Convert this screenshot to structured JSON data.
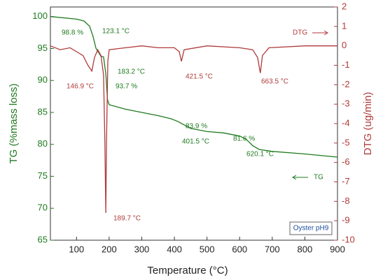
{
  "chart_data": {
    "type": "line",
    "xlabel": "Temperature (°C)",
    "ylabel": "TG (%mass loss)",
    "y2label": "DTG (ug/min)",
    "xlim": [
      20,
      900
    ],
    "xticks": [
      100,
      200,
      300,
      400,
      500,
      600,
      700,
      800,
      900
    ],
    "ylim": [
      65,
      101.5
    ],
    "yticks": [
      65,
      70,
      75,
      80,
      85,
      90,
      95,
      100
    ],
    "y2lim": [
      -10,
      2
    ],
    "y2ticks": [
      -10,
      -9,
      -8,
      -7,
      -6,
      -5,
      -4,
      -3,
      -2,
      -1,
      0,
      1,
      2
    ],
    "series": [
      {
        "name": "TG",
        "color": "#1f7a1f",
        "x": [
          20,
          100,
          123,
          140,
          150,
          160,
          175,
          183,
          190,
          195,
          200,
          250,
          300,
          350,
          390,
          410,
          450,
          500,
          550,
          600,
          620,
          640,
          660,
          700,
          800,
          900
        ],
        "values": [
          100,
          99.6,
          99.3,
          98.5,
          97,
          95,
          93.8,
          93.7,
          91,
          87,
          86.2,
          85.5,
          85,
          84.5,
          84,
          83.6,
          82.5,
          82,
          81.8,
          81.3,
          80.8,
          79.8,
          79.2,
          78.9,
          78.5,
          78
        ]
      },
      {
        "name": "DTG",
        "color": "#b03a3a",
        "axis": "y2",
        "x": [
          20,
          50,
          80,
          100,
          120,
          135,
          147,
          155,
          165,
          175,
          183,
          187,
          189.7,
          192,
          196,
          200,
          250,
          300,
          350,
          400,
          415,
          421.5,
          430,
          500,
          600,
          640,
          655,
          663.5,
          670,
          690,
          800,
          900
        ],
        "values": [
          0,
          -0.2,
          -0.1,
          -0.3,
          -0.5,
          -1.0,
          -1.3,
          -0.6,
          -0.2,
          -0.5,
          -1.5,
          -5,
          -8.6,
          -5,
          -0.8,
          -0.2,
          -0.1,
          0,
          -0.1,
          -0.1,
          -0.3,
          -0.8,
          -0.2,
          0,
          -0.1,
          -0.2,
          -0.6,
          -1.4,
          -0.5,
          -0.1,
          0,
          0
        ]
      }
    ],
    "annotations": [
      "98.8 %",
      "123.1 °C",
      "183.2 °C",
      "146.9 °C",
      "93.7 %",
      "421.5 °C",
      "663.5 °C",
      "83.9 %",
      "401.5 °C",
      "81.6 %",
      "620.1 °C",
      "189.7 °C"
    ],
    "sample_label": "Oyster pH9"
  }
}
